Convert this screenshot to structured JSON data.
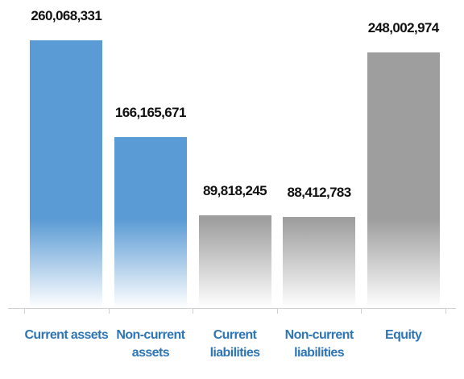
{
  "chart_data": {
    "type": "bar",
    "categories": [
      "Current assets",
      "Non-current assets",
      "Current liabilities",
      "Non-current liabilities",
      "Equity"
    ],
    "values": [
      260068331,
      166165671,
      89818245,
      88412783,
      248002974
    ],
    "value_labels": [
      "260,068,331",
      "166,165,671",
      "89,818,245",
      "88,412,783",
      "248,002,974"
    ],
    "colors": [
      "#5b9bd5",
      "#5b9bd5",
      "#9e9e9e",
      "#9e9e9e",
      "#9e9e9e"
    ]
  }
}
